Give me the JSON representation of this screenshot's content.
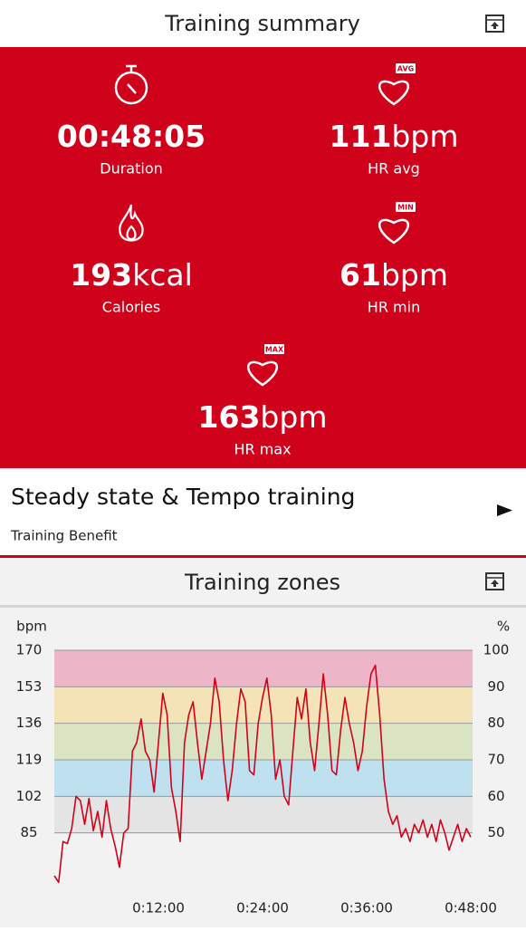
{
  "header": {
    "title": "Training summary"
  },
  "stats": [
    {
      "value": "00:48:05",
      "label": "Duration"
    },
    {
      "value": "111",
      "unit": "bpm",
      "label": "HR avg",
      "badge": "AVG"
    },
    {
      "value": "193",
      "unit": "kcal",
      "label": "Calories"
    },
    {
      "value": "61",
      "unit": "bpm",
      "label": "HR min",
      "badge": "MIN"
    },
    {
      "value": "163",
      "unit": "bpm",
      "label": "HR max",
      "badge": "MAX"
    }
  ],
  "benefit": {
    "title": "Steady state & Tempo training",
    "subtitle": "Training Benefit"
  },
  "zones_header": {
    "title": "Training zones"
  },
  "chart_data": {
    "type": "line",
    "ylabel": "bpm",
    "y2label": "%",
    "color": "#d0021b",
    "xlim": [
      0,
      48
    ],
    "xticks": [
      {
        "value": 12,
        "label": "0:12:00"
      },
      {
        "value": 24,
        "label": "0:24:00"
      },
      {
        "value": 36,
        "label": "0:36:00"
      },
      {
        "value": 48,
        "label": "0:48:00"
      }
    ],
    "ylim": [
      60,
      170
    ],
    "yticks": [
      85,
      102,
      119,
      136,
      153,
      170
    ],
    "y2lim": [
      35.3,
      100
    ],
    "y2ticks": [
      50,
      60,
      70,
      80,
      90,
      100
    ],
    "zone_colors": [
      "#e4e4e4",
      "#bfe1ef",
      "#dae4c2",
      "#f5e3b8",
      "#ecb6c8"
    ],
    "grid": true,
    "x": [
      0,
      0.5,
      1,
      1.5,
      2,
      2.5,
      3,
      3.5,
      4,
      4.5,
      5,
      5.5,
      6,
      6.5,
      7,
      7.5,
      8,
      8.5,
      9,
      9.5,
      10,
      10.5,
      11,
      11.5,
      12,
      12.5,
      13,
      13.5,
      14,
      14.5,
      15,
      15.5,
      16,
      16.5,
      17,
      17.5,
      18,
      18.5,
      19,
      19.5,
      20,
      20.5,
      21,
      21.5,
      22,
      22.5,
      23,
      23.5,
      24,
      24.5,
      25,
      25.5,
      26,
      26.5,
      27,
      27.5,
      28,
      28.5,
      29,
      29.5,
      30,
      30.5,
      31,
      31.5,
      32,
      32.5,
      33,
      33.5,
      34,
      34.5,
      35,
      35.5,
      36,
      36.5,
      37,
      37.5,
      38,
      38.5,
      39,
      39.5,
      40,
      40.5,
      41,
      41.5,
      42,
      42.5,
      43,
      43.5,
      44,
      44.5,
      45,
      45.5,
      46,
      46.5,
      47,
      47.5,
      48
    ],
    "values": [
      65,
      62,
      81,
      80,
      87,
      102,
      100,
      89,
      101,
      86,
      95,
      83,
      100,
      87,
      79,
      69,
      85,
      87,
      123,
      127,
      138,
      123,
      119,
      104,
      127,
      150,
      140,
      106,
      95,
      81,
      127,
      140,
      146,
      127,
      110,
      123,
      136,
      157,
      146,
      119,
      100,
      114,
      136,
      152,
      146,
      114,
      112,
      136,
      148,
      157,
      140,
      110,
      119,
      102,
      98,
      123,
      148,
      138,
      152,
      127,
      114,
      136,
      159,
      140,
      114,
      112,
      133,
      148,
      136,
      127,
      114,
      123,
      144,
      159,
      163,
      140,
      110,
      95,
      89,
      93,
      83,
      87,
      81,
      89,
      85,
      91,
      83,
      89,
      81,
      91,
      85,
      77,
      83,
      89,
      81,
      87,
      83
    ]
  }
}
